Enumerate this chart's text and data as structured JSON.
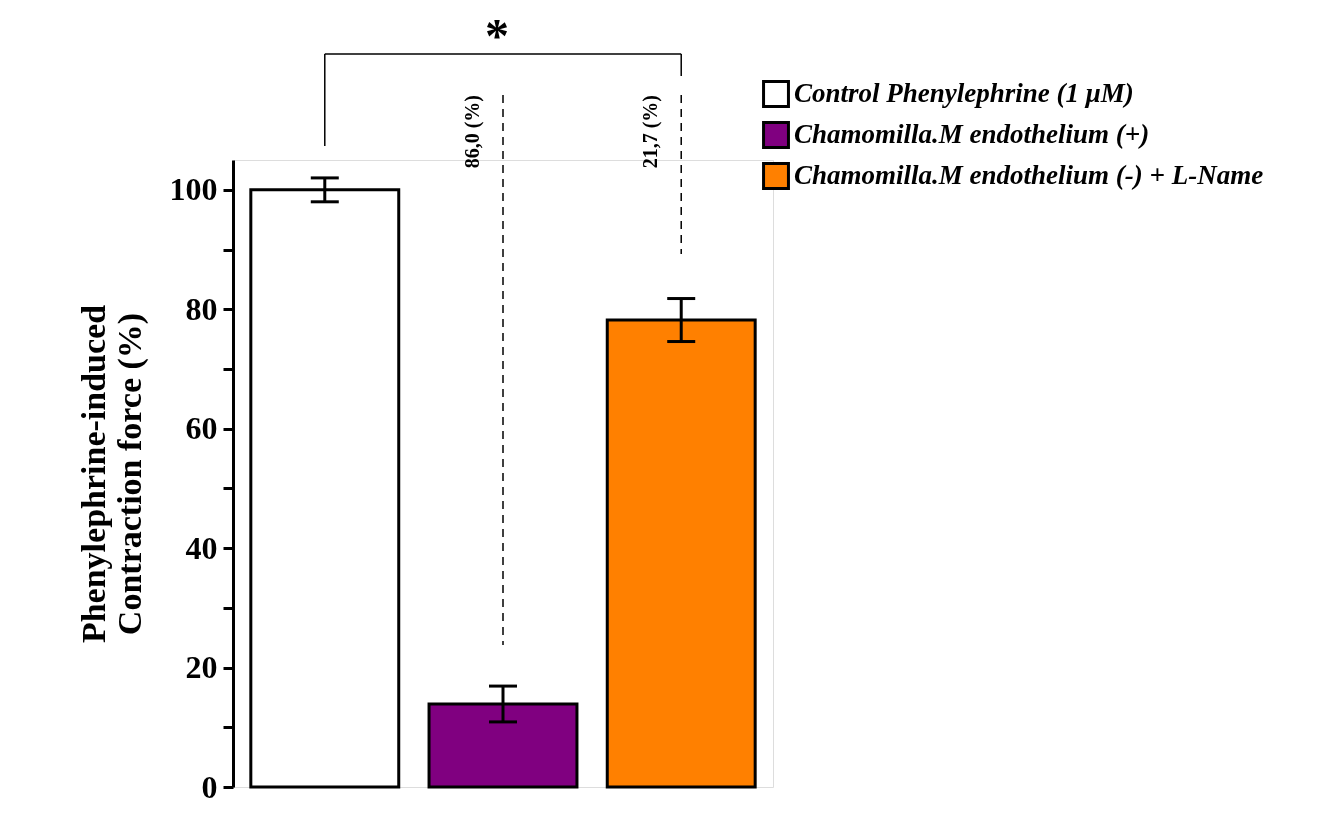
{
  "chart_data": {
    "type": "bar",
    "ylabel": "Phenylephrine-induced\nContraction force (%)",
    "categories": [
      null,
      null,
      null
    ],
    "stacked": true,
    "series": [
      {
        "name": "Control Phenylephrine (1 μM)",
        "color": "#ffffff",
        "values": [
          100,
          null,
          null
        ],
        "errors": [
          2,
          null,
          null
        ]
      },
      {
        "name": "Chamomilla.M endothelium (+)",
        "color": "#800080",
        "values": [
          null,
          13.9,
          null
        ],
        "errors": [
          null,
          3,
          null
        ]
      },
      {
        "name": "Chamomilla.M endothelium (-) + L-Name",
        "color": "#ff8000",
        "values": [
          null,
          null,
          78.2
        ],
        "errors": [
          null,
          null,
          3.6
        ]
      }
    ],
    "ylim": [
      0,
      105
    ],
    "yticks": [
      0,
      {
        "value": 10,
        "label": null
      },
      20,
      {
        "value": 30,
        "label": null
      },
      40,
      {
        "value": 50,
        "label": null
      },
      60,
      {
        "value": 70,
        "label": null
      },
      80,
      {
        "value": 90,
        "label": null
      },
      100
    ],
    "annotations": [
      "*",
      "86,0 (%)",
      "21,7 (%)"
    ],
    "tick_labels": "y",
    "grid": false,
    "legend": "top right"
  }
}
